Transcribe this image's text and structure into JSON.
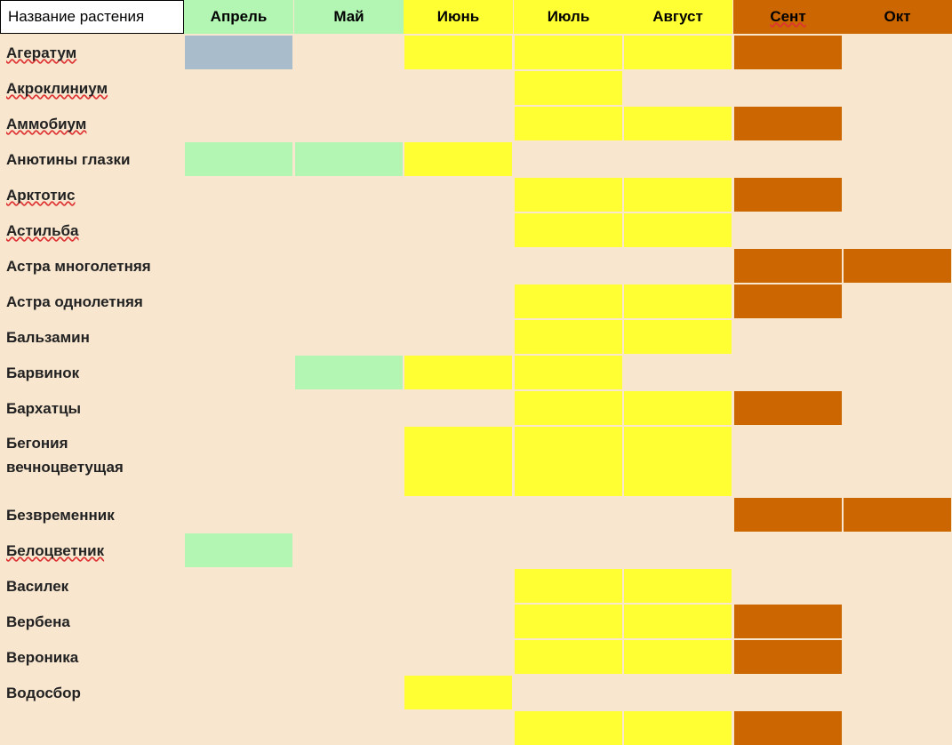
{
  "table": {
    "name_header": "Название растения",
    "months": [
      {
        "label": "Апрель",
        "color": "#b3f5b3",
        "spell": false
      },
      {
        "label": "Май",
        "color": "#b3f5b3",
        "spell": false
      },
      {
        "label": "Июнь",
        "color": "#ffff33",
        "spell": false
      },
      {
        "label": "Июль",
        "color": "#ffff33",
        "spell": false
      },
      {
        "label": "Август",
        "color": "#ffff33",
        "spell": false
      },
      {
        "label": "Сент",
        "color": "#cc6600",
        "spell": true
      },
      {
        "label": "Окт",
        "color": "#cc6600",
        "spell": false
      }
    ],
    "fill_colors": {
      "blue": "#a8bccc",
      "green": "#b3f5b3",
      "yellow": "#ffff33",
      "orange": "#cc6600"
    },
    "rows": [
      {
        "name": "Агератум",
        "spell": true,
        "lines": 1,
        "fills": [
          "blue",
          null,
          "yellow",
          "yellow",
          "yellow",
          "orange",
          null
        ]
      },
      {
        "name": "Акроклиниум",
        "spell": true,
        "lines": 1,
        "fills": [
          null,
          null,
          null,
          "yellow",
          null,
          null,
          null
        ]
      },
      {
        "name": "Аммобиум",
        "spell": true,
        "lines": 1,
        "fills": [
          null,
          null,
          null,
          "yellow",
          "yellow",
          "orange",
          null
        ]
      },
      {
        "name": "Анютины глазки",
        "spell": false,
        "lines": 1,
        "fills": [
          "green",
          "green",
          "yellow",
          null,
          null,
          null,
          null
        ]
      },
      {
        "name": "Арктотис",
        "spell": true,
        "lines": 1,
        "fills": [
          null,
          null,
          null,
          "yellow",
          "yellow",
          "orange",
          null
        ]
      },
      {
        "name": "Астильба",
        "spell": true,
        "lines": 1,
        "fills": [
          null,
          null,
          null,
          "yellow",
          "yellow",
          null,
          null
        ]
      },
      {
        "name": "Астра многолетняя",
        "spell": false,
        "lines": 1,
        "fills": [
          null,
          null,
          null,
          null,
          null,
          "orange",
          "orange"
        ]
      },
      {
        "name": "Астра однолетняя",
        "spell": false,
        "lines": 1,
        "fills": [
          null,
          null,
          null,
          "yellow",
          "yellow",
          "orange",
          null
        ]
      },
      {
        "name": "Бальзамин",
        "spell": false,
        "lines": 1,
        "fills": [
          null,
          null,
          null,
          "yellow",
          "yellow",
          null,
          null
        ]
      },
      {
        "name": "Барвинок",
        "spell": false,
        "lines": 1,
        "fills": [
          null,
          "green",
          "yellow",
          "yellow",
          null,
          null,
          null
        ]
      },
      {
        "name": "Бархатцы",
        "spell": false,
        "lines": 1,
        "fills": [
          null,
          null,
          null,
          "yellow",
          "yellow",
          "orange",
          null
        ]
      },
      {
        "name": "Бегония\nвечноцветущая",
        "spell": false,
        "lines": 2,
        "fills": [
          null,
          null,
          "yellow",
          "yellow",
          "yellow",
          null,
          null
        ]
      },
      {
        "name": "Безвременник",
        "spell": false,
        "lines": 1,
        "fills": [
          null,
          null,
          null,
          null,
          null,
          "orange",
          "orange"
        ]
      },
      {
        "name": "Белоцветник",
        "spell": true,
        "lines": 1,
        "fills": [
          "green",
          null,
          null,
          null,
          null,
          null,
          null
        ]
      },
      {
        "name": "Василек",
        "spell": false,
        "lines": 1,
        "fills": [
          null,
          null,
          null,
          "yellow",
          "yellow",
          null,
          null
        ]
      },
      {
        "name": "Вербена",
        "spell": false,
        "lines": 1,
        "fills": [
          null,
          null,
          null,
          "yellow",
          "yellow",
          "orange",
          null
        ]
      },
      {
        "name": "Вероника",
        "spell": false,
        "lines": 1,
        "fills": [
          null,
          null,
          null,
          "yellow",
          "yellow",
          "orange",
          null
        ]
      },
      {
        "name": "Водосбор",
        "spell": false,
        "lines": 1,
        "fills": [
          null,
          null,
          "yellow",
          null,
          null,
          null,
          null
        ]
      },
      {
        "name": "",
        "spell": false,
        "lines": 1,
        "fills": [
          null,
          null,
          null,
          "yellow",
          "yellow",
          "orange",
          null
        ]
      }
    ]
  }
}
